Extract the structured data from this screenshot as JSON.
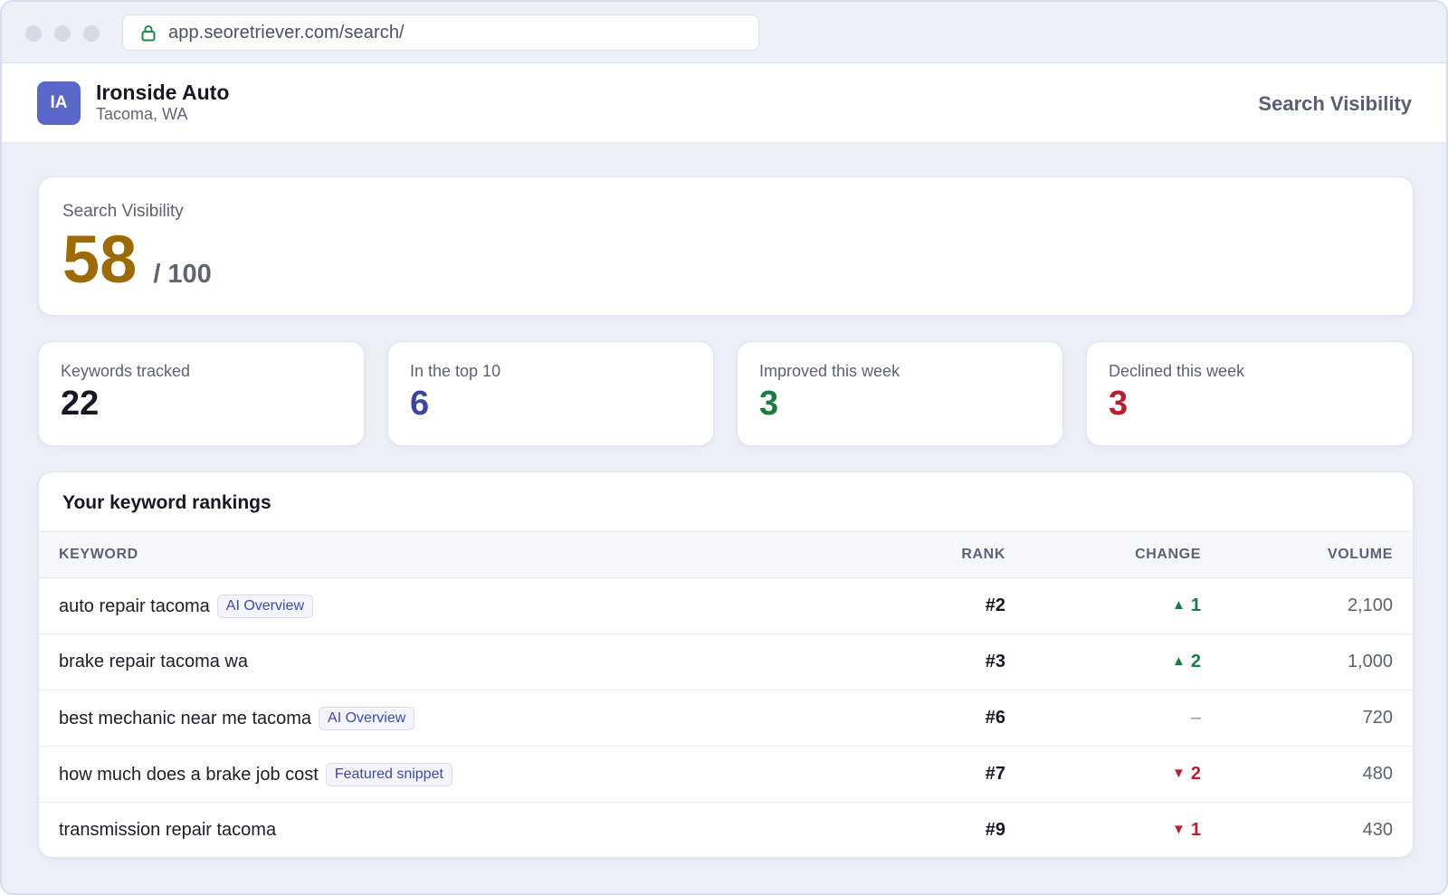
{
  "browser": {
    "url": "app.seoretriever.com/search/"
  },
  "header": {
    "avatar_initials": "IA",
    "business_name": "Ironside Auto",
    "business_location": "Tacoma, WA",
    "page_title": "Search Visibility"
  },
  "score": {
    "label": "Search Visibility",
    "value": "58",
    "max": "/ 100",
    "value_color": "#9c6a06"
  },
  "stats": [
    {
      "label": "Keywords tracked",
      "value": "22",
      "color": "#161826"
    },
    {
      "label": "In the top 10",
      "value": "6",
      "color": "#3a46a0"
    },
    {
      "label": "Improved this week",
      "value": "3",
      "color": "#1c7a44"
    },
    {
      "label": "Declined this week",
      "value": "3",
      "color": "#b8202f"
    }
  ],
  "rankings": {
    "title": "Your keyword rankings",
    "columns": {
      "keyword": "Keyword",
      "rank": "Rank",
      "change": "Change",
      "volume": "Volume"
    },
    "rows": [
      {
        "keyword": "auto repair tacoma",
        "badge": "AI Overview",
        "rank": "#2",
        "direction": "up",
        "change": "1",
        "volume": "2,100"
      },
      {
        "keyword": "brake repair tacoma wa",
        "badge": "",
        "rank": "#3",
        "direction": "up",
        "change": "2",
        "volume": "1,000"
      },
      {
        "keyword": "best mechanic near me tacoma",
        "badge": "AI Overview",
        "rank": "#6",
        "direction": "none",
        "change": "–",
        "volume": "720"
      },
      {
        "keyword": "how much does a brake job cost",
        "badge": "Featured snippet",
        "rank": "#7",
        "direction": "down",
        "change": "2",
        "volume": "480"
      },
      {
        "keyword": "transmission repair tacoma",
        "badge": "",
        "rank": "#9",
        "direction": "down",
        "change": "1",
        "volume": "430"
      }
    ]
  },
  "icons": {
    "lock": "lock-icon",
    "up": "triangle-up-icon",
    "down": "triangle-down-icon"
  },
  "colors": {
    "brand": "#5b68c9",
    "positive": "#1c7a44",
    "negative": "#b8202f"
  }
}
